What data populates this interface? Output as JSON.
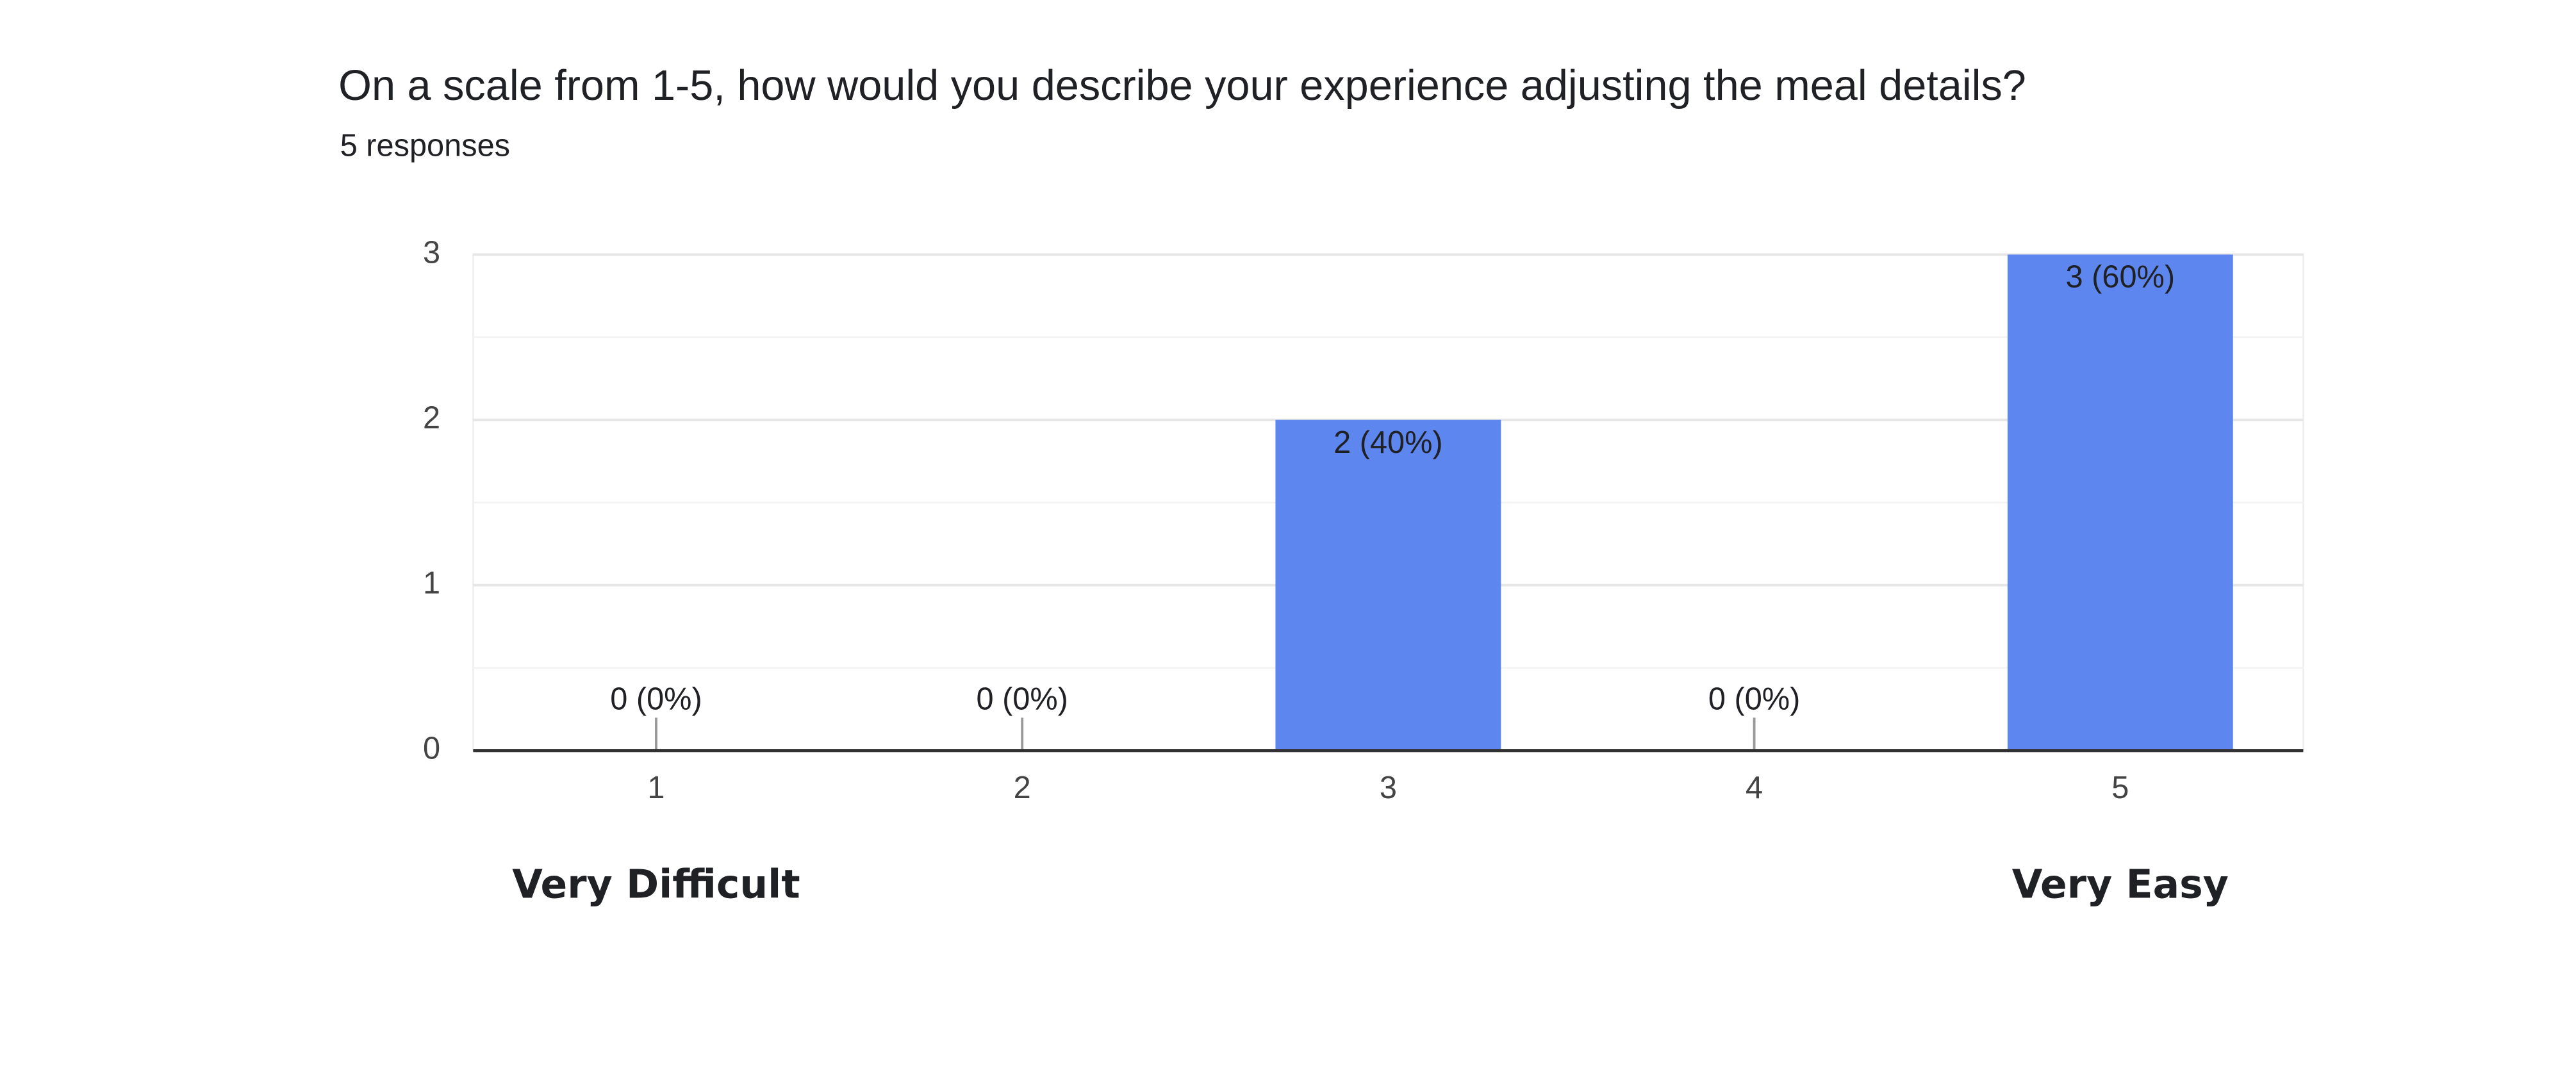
{
  "chart_data": {
    "type": "bar",
    "title": "On a scale from 1-5, how would you describe your experience adjusting the meal details?",
    "subtitle": "5 responses",
    "categories": [
      "1",
      "2",
      "3",
      "4",
      "5"
    ],
    "values": [
      0,
      0,
      2,
      0,
      3
    ],
    "value_labels": [
      "0 (0%)",
      "0 (0%)",
      "2 (40%)",
      "0 (0%)",
      "3 (60%)"
    ],
    "color": "#5e86ef",
    "ylim": [
      0,
      3
    ],
    "yticks": [
      0,
      1,
      2,
      3
    ],
    "grid": true,
    "annotations": [
      "Very Difficult",
      "Very Easy"
    ]
  }
}
